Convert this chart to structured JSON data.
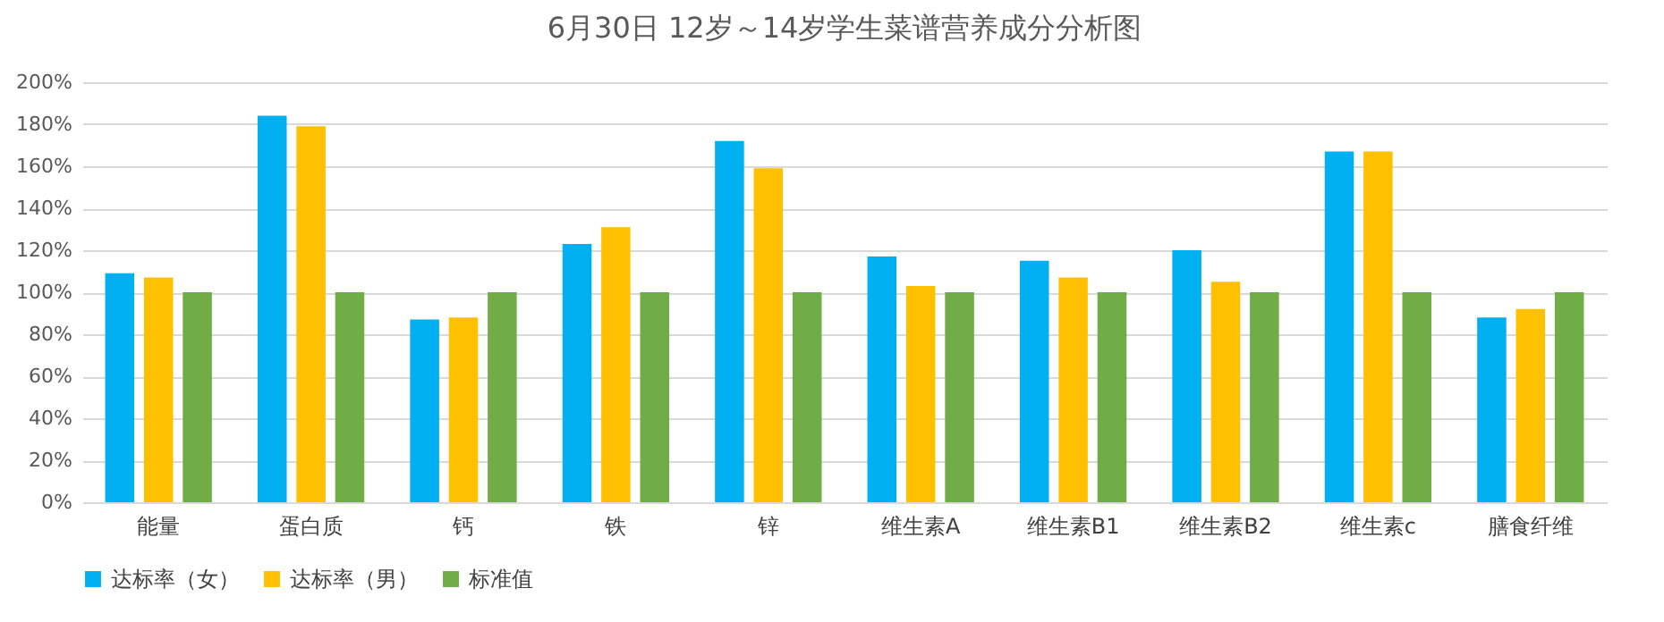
{
  "chart_data": {
    "type": "bar",
    "title": "6月30日 12岁～14岁学生菜谱营养成分分析图",
    "categories": [
      "能量",
      "蛋白质",
      "钙",
      "铁",
      "锌",
      "维生素A",
      "维生素B1",
      "维生素B2",
      "维生素c",
      "膳食纤维"
    ],
    "series": [
      {
        "name": "达标率（女）",
        "color": "#00b0f0",
        "values": [
          109,
          184,
          87,
          123,
          172,
          117,
          115,
          120,
          167,
          88
        ]
      },
      {
        "name": "达标率（男）",
        "color": "#ffc000",
        "values": [
          107,
          179,
          88,
          131,
          159,
          103,
          107,
          105,
          167,
          92
        ]
      },
      {
        "name": "标准值",
        "color": "#70ad47",
        "values": [
          100,
          100,
          100,
          100,
          100,
          100,
          100,
          100,
          100,
          100
        ]
      }
    ],
    "ylim": [
      0,
      200
    ],
    "yticks": [
      {
        "value": 0,
        "label": "0%"
      },
      {
        "value": 20,
        "label": "20%"
      },
      {
        "value": 40,
        "label": "40%"
      },
      {
        "value": 60,
        "label": "60%"
      },
      {
        "value": 80,
        "label": "80%"
      },
      {
        "value": 100,
        "label": "100%"
      },
      {
        "value": 120,
        "label": "120%"
      },
      {
        "value": 140,
        "label": "140%"
      },
      {
        "value": 160,
        "label": "160%"
      },
      {
        "value": 180,
        "label": "180%"
      },
      {
        "value": 200,
        "label": "200%"
      }
    ],
    "grid": "y",
    "legend": "bottom"
  }
}
